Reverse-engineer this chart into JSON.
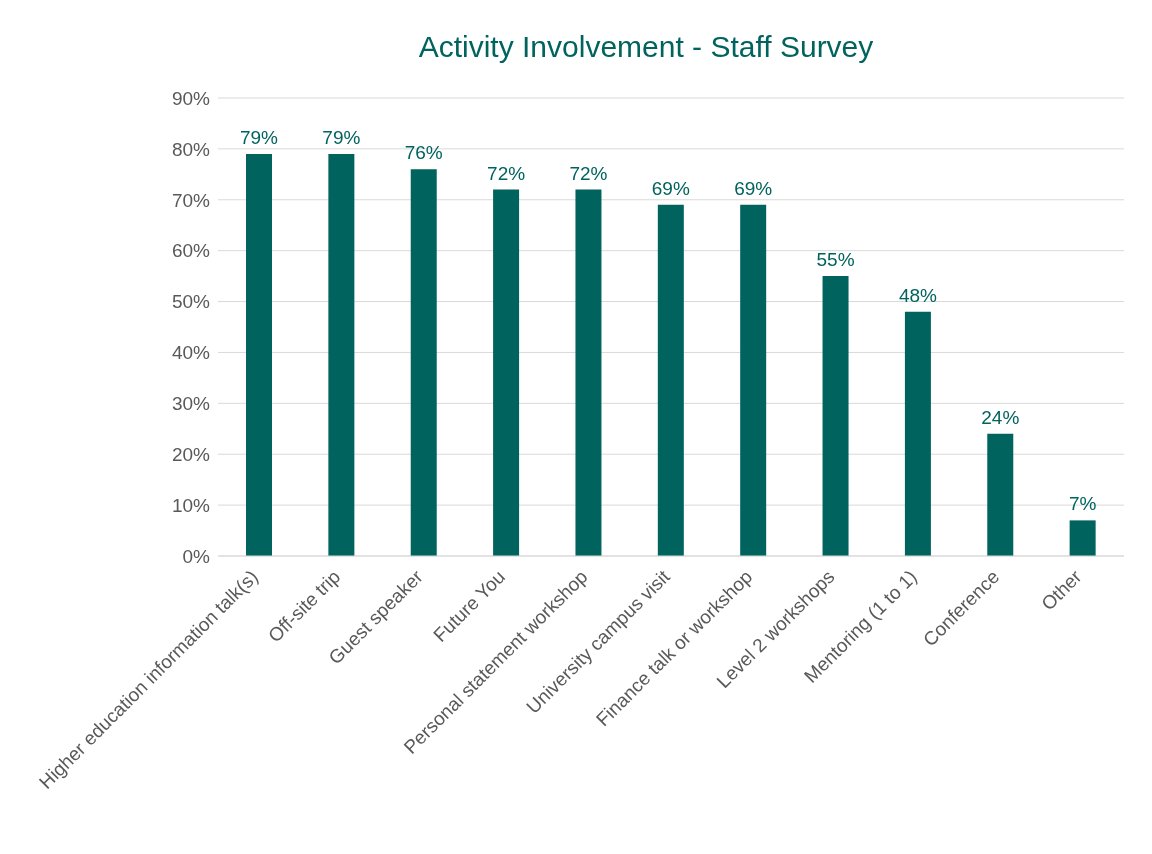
{
  "chart_data": {
    "type": "bar",
    "title": "Activity Involvement - Staff Survey",
    "categories": [
      "Higher education information talk(s)",
      "Off-site trip",
      "Guest speaker",
      "Future You",
      "Personal statement workshop",
      "University campus visit",
      "Finance talk or workshop",
      "Level 2 workshops",
      "Mentoring (1 to 1)",
      "Conference",
      "Other"
    ],
    "values": [
      79,
      79,
      76,
      72,
      72,
      69,
      69,
      55,
      48,
      24,
      7
    ],
    "value_labels": [
      "79%",
      "79%",
      "76%",
      "72%",
      "72%",
      "69%",
      "69%",
      "55%",
      "48%",
      "24%",
      "7%"
    ],
    "color": "#00635e",
    "ylim": [
      0,
      90
    ],
    "yticks": [
      {
        "value": 0,
        "label": "0%"
      },
      {
        "value": 10,
        "label": "10%"
      },
      {
        "value": 20,
        "label": "20%"
      },
      {
        "value": 30,
        "label": "30%"
      },
      {
        "value": 40,
        "label": "40%"
      },
      {
        "value": 50,
        "label": "50%"
      },
      {
        "value": 60,
        "label": "60%"
      },
      {
        "value": 70,
        "label": "70%"
      },
      {
        "value": 80,
        "label": "80%"
      },
      {
        "value": 90,
        "label": "90%"
      }
    ],
    "grid": "y"
  }
}
